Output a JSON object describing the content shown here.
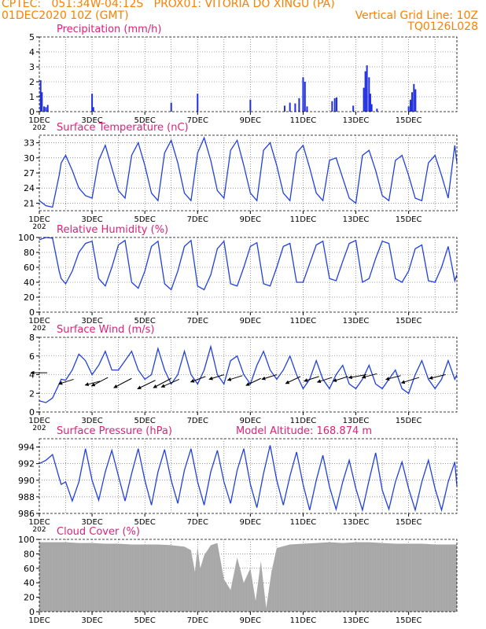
{
  "header": {
    "line1": "CPTEC:   051:34W-04:12S   PROX01: VITORIA DO XINGU (PA)",
    "line2": "01DEC2020 10Z (GMT)",
    "grid_note": "Vertical Grid Line: 10Z",
    "code": "TQ0126L028",
    "model_altitude": "Model Altitude: 168.874 m",
    "colors": {
      "header": "#ff7f00",
      "title": "#e0207a",
      "series": "#2040e0",
      "bar": "#2030e0",
      "cloud": "#a8a8a8",
      "arrow": "#000000"
    }
  },
  "x_axis": {
    "days": 15.83,
    "tick_labels": [
      "1DEC",
      "3DEC",
      "5DEC",
      "7DEC",
      "9DEC",
      "11DEC",
      "13DEC",
      "15DEC"
    ],
    "tick_days": [
      0,
      2,
      4,
      6,
      8,
      10,
      12,
      14
    ],
    "year_fragment": "202"
  },
  "chart_data": [
    {
      "type": "bar",
      "title": "Precipitation (mm/h)",
      "ylim": [
        0,
        5
      ],
      "yticks": [
        0,
        1,
        2,
        3,
        4,
        5
      ],
      "series": [
        {
          "values": [
            [
              0.05,
              2.1
            ],
            [
              0.1,
              1.3
            ],
            [
              0.18,
              0.35
            ],
            [
              0.25,
              0.3
            ],
            [
              0.32,
              0.45
            ],
            [
              2.0,
              1.2
            ],
            [
              2.05,
              0.3
            ],
            [
              5.0,
              0.6
            ],
            [
              6.0,
              1.2
            ],
            [
              8.0,
              0.8
            ],
            [
              9.3,
              0.4
            ],
            [
              9.5,
              0.6
            ],
            [
              9.7,
              0.55
            ],
            [
              9.85,
              0.9
            ],
            [
              10.0,
              2.3
            ],
            [
              10.07,
              2.0
            ],
            [
              10.15,
              0.35
            ],
            [
              11.1,
              0.7
            ],
            [
              11.2,
              0.9
            ],
            [
              11.27,
              0.95
            ],
            [
              11.9,
              0.4
            ],
            [
              12.3,
              1.6
            ],
            [
              12.36,
              2.7
            ],
            [
              12.42,
              3.1
            ],
            [
              12.5,
              2.3
            ],
            [
              12.55,
              1.2
            ],
            [
              12.6,
              0.5
            ],
            [
              12.8,
              0.2
            ],
            [
              14.0,
              0.35
            ],
            [
              14.07,
              0.8
            ],
            [
              14.13,
              1.3
            ],
            [
              14.2,
              1.85
            ],
            [
              14.26,
              1.5
            ]
          ]
        }
      ]
    },
    {
      "type": "line",
      "title": "Surface Temperature (nC)",
      "ylim": [
        19.5,
        34.5
      ],
      "yticks": [
        21,
        24,
        27,
        30,
        33
      ],
      "x": [
        0.0,
        0.25,
        0.5,
        0.75,
        0.83,
        1.0,
        1.25,
        1.5,
        1.75,
        2.0,
        2.25,
        2.5,
        2.75,
        3.0,
        3.25,
        3.5,
        3.75,
        4.0,
        4.25,
        4.5,
        4.75,
        5.0,
        5.25,
        5.5,
        5.75,
        6.0,
        6.25,
        6.5,
        6.75,
        7.0,
        7.25,
        7.5,
        7.75,
        8.0,
        8.25,
        8.5,
        8.75,
        9.0,
        9.25,
        9.5,
        9.75,
        10.0,
        10.25,
        10.5,
        10.75,
        11.0,
        11.25,
        11.5,
        11.75,
        12.0,
        12.25,
        12.5,
        12.75,
        13.0,
        13.25,
        13.5,
        13.75,
        14.0,
        14.25,
        14.5,
        14.75,
        15.0,
        15.25,
        15.5,
        15.75,
        15.83
      ],
      "series": [
        {
          "values": [
            21.5,
            20.5,
            20.2,
            26.5,
            29.0,
            30.5,
            27.5,
            24.0,
            22.5,
            22.0,
            29.5,
            32.5,
            28.0,
            23.5,
            22.0,
            30.5,
            33.0,
            28.5,
            23.0,
            21.5,
            31.0,
            33.5,
            29.0,
            23.0,
            21.5,
            31.0,
            34.0,
            29.5,
            23.5,
            22.0,
            31.5,
            33.5,
            28.5,
            23.0,
            21.5,
            31.5,
            33.0,
            28.5,
            23.0,
            21.5,
            31.0,
            32.5,
            28.0,
            23.0,
            21.5,
            29.5,
            30.0,
            26.0,
            22.0,
            21.0,
            30.5,
            31.5,
            27.5,
            22.5,
            21.5,
            29.5,
            30.5,
            26.5,
            22.0,
            21.5,
            29.0,
            30.5,
            26.5,
            22.0,
            32.5,
            29.0
          ]
        }
      ]
    },
    {
      "type": "line",
      "title": "Relative Humidity (%)",
      "ylim": [
        0,
        100
      ],
      "yticks": [
        0,
        20,
        40,
        60,
        80,
        100
      ],
      "x": [
        0.0,
        0.25,
        0.5,
        0.75,
        0.83,
        1.0,
        1.25,
        1.5,
        1.75,
        2.0,
        2.25,
        2.5,
        2.75,
        3.0,
        3.25,
        3.5,
        3.75,
        4.0,
        4.25,
        4.5,
        4.75,
        5.0,
        5.25,
        5.5,
        5.75,
        6.0,
        6.25,
        6.5,
        6.75,
        7.0,
        7.25,
        7.5,
        7.75,
        8.0,
        8.25,
        8.5,
        8.75,
        9.0,
        9.25,
        9.5,
        9.75,
        10.0,
        10.25,
        10.5,
        10.75,
        11.0,
        11.25,
        11.5,
        11.75,
        12.0,
        12.25,
        12.5,
        12.75,
        13.0,
        13.25,
        13.5,
        13.75,
        14.0,
        14.25,
        14.5,
        14.75,
        15.0,
        15.25,
        15.5,
        15.75,
        15.83
      ],
      "series": [
        {
          "values": [
            97,
            100,
            99,
            55,
            45,
            38,
            55,
            80,
            92,
            95,
            45,
            35,
            60,
            90,
            96,
            40,
            32,
            55,
            88,
            95,
            38,
            30,
            55,
            88,
            96,
            35,
            30,
            50,
            85,
            95,
            38,
            35,
            60,
            88,
            93,
            38,
            35,
            60,
            88,
            92,
            40,
            40,
            65,
            90,
            95,
            45,
            42,
            68,
            92,
            96,
            40,
            45,
            72,
            95,
            92,
            45,
            40,
            55,
            85,
            90,
            42,
            40,
            60,
            88,
            42,
            50
          ]
        }
      ]
    },
    {
      "type": "line",
      "title": "Surface Wind (m/s)",
      "ylim": [
        0,
        8
      ],
      "yticks": [
        0,
        2,
        4,
        6,
        8
      ],
      "x": [
        0.0,
        0.25,
        0.5,
        0.75,
        0.83,
        1.0,
        1.25,
        1.5,
        1.75,
        2.0,
        2.25,
        2.5,
        2.75,
        3.0,
        3.25,
        3.5,
        3.75,
        4.0,
        4.25,
        4.5,
        4.75,
        5.0,
        5.25,
        5.5,
        5.75,
        6.0,
        6.25,
        6.5,
        6.75,
        7.0,
        7.25,
        7.5,
        7.75,
        8.0,
        8.25,
        8.5,
        8.75,
        9.0,
        9.25,
        9.5,
        9.75,
        10.0,
        10.25,
        10.5,
        10.75,
        11.0,
        11.25,
        11.5,
        11.75,
        12.0,
        12.25,
        12.5,
        12.75,
        13.0,
        13.25,
        13.5,
        13.75,
        14.0,
        14.25,
        14.5,
        14.75,
        15.0,
        15.25,
        15.5,
        15.75,
        15.83
      ],
      "series": [
        {
          "values": [
            1.2,
            1.0,
            1.5,
            3.0,
            3.5,
            3.4,
            4.5,
            6.2,
            5.5,
            4.0,
            5.0,
            6.5,
            4.5,
            4.5,
            5.5,
            6.5,
            4.5,
            3.5,
            4.0,
            6.8,
            4.5,
            3.0,
            4.0,
            6.5,
            4.0,
            3.0,
            4.5,
            7.0,
            4.0,
            3.0,
            5.5,
            6.0,
            4.0,
            3.0,
            5.0,
            6.5,
            4.5,
            3.5,
            4.5,
            6.0,
            4.0,
            2.5,
            3.5,
            5.5,
            3.5,
            2.5,
            4.0,
            5.0,
            3.0,
            2.5,
            3.5,
            5.0,
            3.0,
            2.5,
            3.5,
            4.5,
            2.5,
            2.0,
            4.0,
            5.5,
            3.5,
            2.5,
            3.5,
            5.5,
            3.5,
            4.0
          ]
        }
      ],
      "arrows": [
        {
          "x": 0.3,
          "y": 4.2,
          "u": -0.55,
          "v": 0.0
        },
        {
          "x": 1.3,
          "y": 3.5,
          "u": -0.5,
          "v": -0.3
        },
        {
          "x": 2.3,
          "y": 3.3,
          "u": -0.5,
          "v": -0.25
        },
        {
          "x": 2.6,
          "y": 3.7,
          "u": -0.55,
          "v": -0.55
        },
        {
          "x": 3.5,
          "y": 3.6,
          "u": -0.6,
          "v": -0.6
        },
        {
          "x": 4.4,
          "y": 3.4,
          "u": -0.6,
          "v": -0.55
        },
        {
          "x": 5.0,
          "y": 3.6,
          "u": -0.6,
          "v": -0.6
        },
        {
          "x": 5.3,
          "y": 3.5,
          "u": -0.6,
          "v": -0.5
        },
        {
          "x": 6.3,
          "y": 3.8,
          "u": -0.5,
          "v": -0.35
        },
        {
          "x": 7.0,
          "y": 4.0,
          "u": -0.5,
          "v": -0.3
        },
        {
          "x": 7.7,
          "y": 3.9,
          "u": -0.5,
          "v": -0.3
        },
        {
          "x": 8.4,
          "y": 3.6,
          "u": -0.5,
          "v": -0.45
        },
        {
          "x": 9.0,
          "y": 4.0,
          "u": -0.5,
          "v": -0.3
        },
        {
          "x": 9.9,
          "y": 3.8,
          "u": -0.5,
          "v": -0.45
        },
        {
          "x": 10.6,
          "y": 3.8,
          "u": -0.5,
          "v": -0.3
        },
        {
          "x": 11.1,
          "y": 3.7,
          "u": -0.5,
          "v": -0.3
        },
        {
          "x": 11.7,
          "y": 3.8,
          "u": -0.5,
          "v": -0.3
        },
        {
          "x": 12.4,
          "y": 4.0,
          "u": -0.6,
          "v": -0.2
        },
        {
          "x": 12.8,
          "y": 4.1,
          "u": -0.5,
          "v": -0.25
        },
        {
          "x": 13.7,
          "y": 3.9,
          "u": -0.5,
          "v": -0.25
        },
        {
          "x": 14.4,
          "y": 3.7,
          "u": -0.6,
          "v": -0.35
        },
        {
          "x": 15.4,
          "y": 4.0,
          "u": -0.55,
          "v": -0.25
        }
      ]
    },
    {
      "type": "line",
      "title": "Surface Pressure (hPa)",
      "ylim": [
        986,
        995
      ],
      "yticks": [
        986,
        988,
        990,
        992,
        994
      ],
      "x": [
        0.0,
        0.25,
        0.5,
        0.75,
        0.83,
        1.0,
        1.25,
        1.5,
        1.75,
        2.0,
        2.25,
        2.5,
        2.75,
        3.0,
        3.25,
        3.5,
        3.75,
        4.0,
        4.25,
        4.5,
        4.75,
        5.0,
        5.25,
        5.5,
        5.75,
        6.0,
        6.25,
        6.5,
        6.75,
        7.0,
        7.25,
        7.5,
        7.75,
        8.0,
        8.25,
        8.5,
        8.75,
        9.0,
        9.25,
        9.5,
        9.75,
        10.0,
        10.25,
        10.5,
        10.75,
        11.0,
        11.25,
        11.5,
        11.75,
        12.0,
        12.25,
        12.5,
        12.75,
        13.0,
        13.25,
        13.5,
        13.75,
        14.0,
        14.25,
        14.5,
        14.75,
        15.0,
        15.25,
        15.5,
        15.75,
        15.83
      ],
      "series": [
        {
          "values": [
            992.0,
            992.4,
            993.1,
            990.3,
            989.5,
            989.8,
            987.5,
            989.8,
            993.8,
            990.0,
            987.6,
            991.0,
            993.6,
            990.5,
            987.5,
            990.8,
            993.8,
            990.0,
            987.0,
            991.0,
            993.7,
            990.0,
            987.2,
            991.2,
            993.8,
            989.8,
            987.0,
            991.0,
            993.6,
            989.8,
            987.2,
            991.2,
            993.8,
            989.5,
            986.7,
            990.8,
            994.2,
            990.0,
            987.0,
            990.5,
            993.4,
            989.5,
            986.4,
            990.0,
            993.0,
            989.2,
            986.5,
            989.8,
            992.4,
            989.0,
            986.4,
            990.0,
            993.3,
            988.8,
            986.5,
            989.8,
            992.2,
            989.0,
            986.4,
            989.8,
            992.4,
            989.0,
            986.4,
            989.8,
            992.2,
            989.3
          ]
        }
      ]
    },
    {
      "type": "bar",
      "title": "Cloud Cover (%)",
      "ylim": [
        0,
        100
      ],
      "yticks": [
        0,
        20,
        40,
        60,
        80,
        100
      ],
      "x": [
        0.0,
        0.5,
        1.0,
        1.5,
        2.0,
        2.5,
        3.0,
        3.5,
        4.0,
        4.5,
        5.0,
        5.5,
        5.75,
        5.9,
        6.0,
        6.1,
        6.25,
        6.5,
        6.75,
        7.0,
        7.25,
        7.5,
        7.75,
        8.0,
        8.2,
        8.4,
        8.6,
        8.8,
        9.0,
        9.5,
        10.0,
        10.5,
        11.0,
        11.5,
        12.0,
        12.5,
        13.0,
        13.5,
        14.0,
        14.5,
        15.0,
        15.5,
        15.83
      ],
      "series": [
        {
          "values": [
            96,
            96,
            96,
            95,
            95,
            94,
            94,
            93,
            93,
            93,
            92,
            90,
            85,
            55,
            90,
            60,
            78,
            92,
            95,
            45,
            30,
            75,
            40,
            60,
            15,
            70,
            5,
            55,
            88,
            93,
            94,
            95,
            96,
            95,
            96,
            96,
            95,
            94,
            94,
            94,
            93,
            93,
            93
          ]
        }
      ]
    }
  ]
}
